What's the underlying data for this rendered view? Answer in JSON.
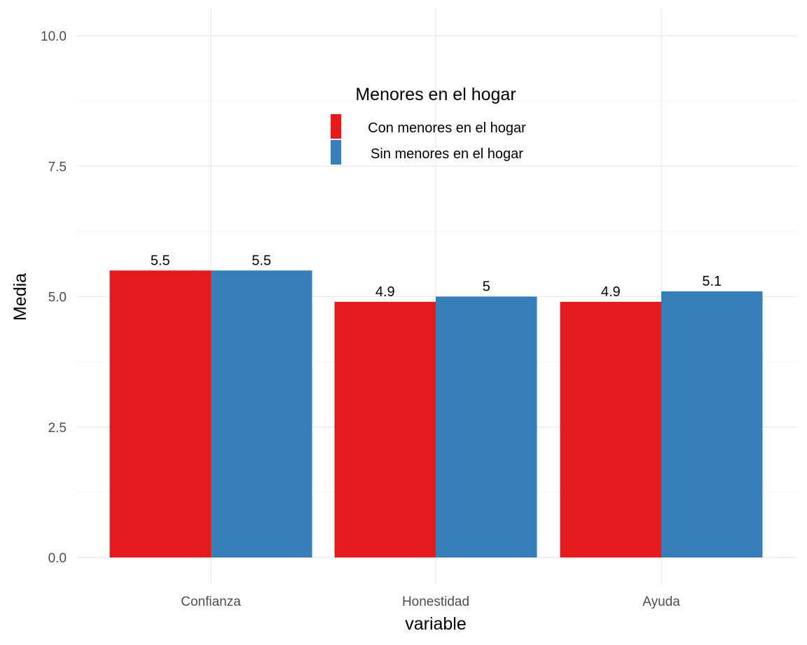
{
  "chart_data": {
    "type": "bar",
    "title": "",
    "xlabel": "variable",
    "ylabel": "Media",
    "categories": [
      "Confianza",
      "Honestidad",
      "Ayuda"
    ],
    "series": [
      {
        "name": "Con menores en el hogar",
        "color": "#e41a1c",
        "values": [
          5.5,
          4.9,
          4.9
        ],
        "labels": [
          "5.5",
          "4.9",
          "4.9"
        ]
      },
      {
        "name": "Sin menores en el hogar",
        "color": "#377eb8",
        "values": [
          5.5,
          5.0,
          5.1
        ],
        "labels": [
          "5.5",
          "5",
          "5.1"
        ]
      }
    ],
    "ylim": [
      0,
      10
    ],
    "yticks": [
      "0.0",
      "2.5",
      "5.0",
      "7.5",
      "10.0"
    ],
    "grid": true,
    "legend": {
      "title": "Menores en el hogar",
      "placement": "top-center"
    }
  }
}
